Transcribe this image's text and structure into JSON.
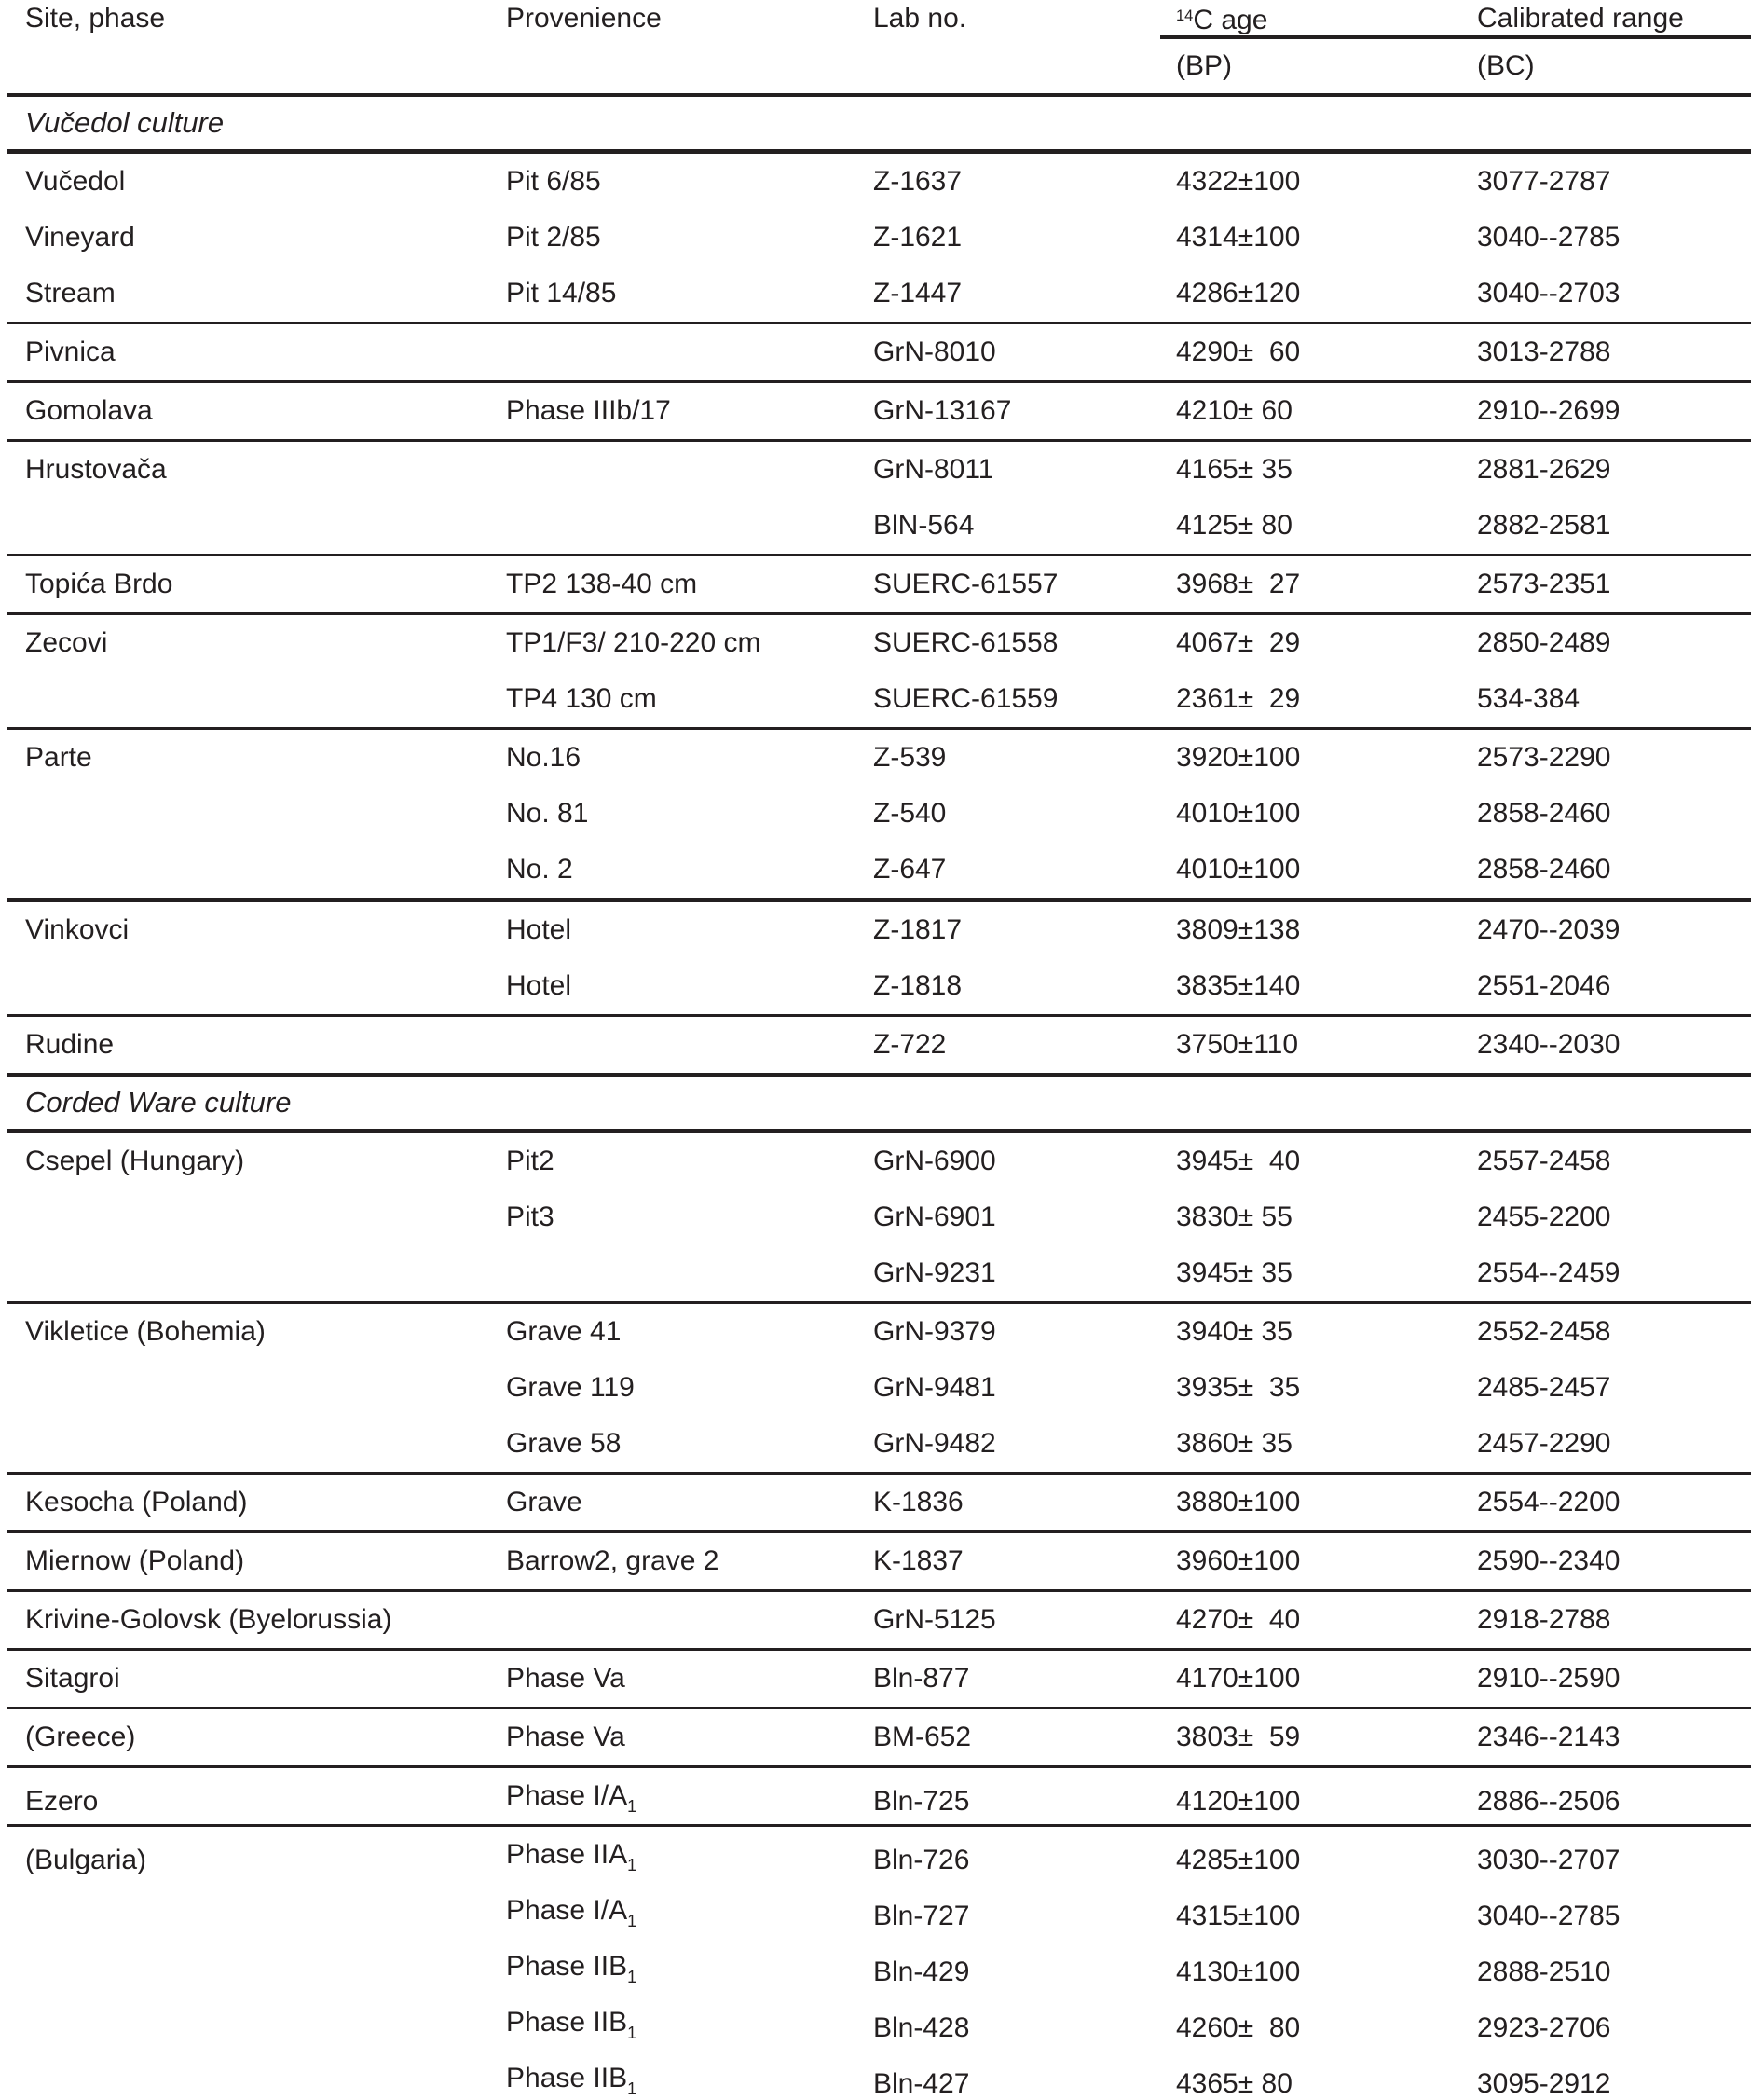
{
  "colors": {
    "text": "#231f20",
    "background": "#ffffff",
    "rule": "#231f20"
  },
  "header": {
    "site": "Site, phase",
    "provenience": "Provenience",
    "lab": "Lab no.",
    "c14_sup": "14",
    "c14_main": "C age",
    "bp": "(BP)",
    "calibrated": "Calibrated range",
    "bc": "(BC)"
  },
  "sections": [
    {
      "title": "Vučedol culture",
      "rule_after_title": "thick",
      "groups": [
        {
          "rule_after": "thin",
          "rows": [
            {
              "site": "Vučedol",
              "prov": "Pit 6/85",
              "lab": "Z-1637",
              "age": "4322±100",
              "cal": "3077-2787"
            },
            {
              "site": "Vineyard",
              "prov": "Pit 2/85",
              "lab": "Z-1621",
              "age": "4314±100",
              "cal": "3040--2785"
            },
            {
              "site": "Stream",
              "prov": "Pit 14/85",
              "lab": "Z-1447",
              "age": "4286±120",
              "cal": "3040--2703"
            }
          ]
        },
        {
          "rule_after": "thin",
          "rows": [
            {
              "site": "Pivnica",
              "prov": "",
              "lab": "GrN-8010",
              "age": "4290±  60",
              "cal": "3013-2788"
            }
          ]
        },
        {
          "rule_after": "thin",
          "rows": [
            {
              "site": "Gomolava",
              "prov": "Phase IIIb/17",
              "lab": "GrN-13167",
              "age": "4210± 60",
              "cal": "2910--2699"
            }
          ]
        },
        {
          "rule_after": "thin",
          "rows": [
            {
              "site": "Hrustovača",
              "prov": "",
              "lab": "GrN-8011",
              "age": "4165± 35",
              "cal": "2881-2629"
            },
            {
              "site": "",
              "prov": "",
              "lab": "BlN-564",
              "age": "4125± 80",
              "cal": "2882-2581"
            }
          ]
        },
        {
          "rule_after": "thin",
          "rows": [
            {
              "site": "Topića Brdo",
              "prov": "TP2 138-40 cm",
              "lab": "SUERC-61557",
              "age": "3968±  27",
              "cal": "2573-2351"
            }
          ]
        },
        {
          "rule_after": "thin",
          "rows": [
            {
              "site": "Zecovi",
              "prov": "TP1/F3/ 210-220 cm",
              "lab": "SUERC-61558",
              "age": "4067±  29",
              "cal": "2850-2489"
            },
            {
              "site": "",
              "prov": "TP4 130 cm",
              "lab": "SUERC-61559",
              "age": "2361±  29",
              "cal": "534-384"
            }
          ]
        },
        {
          "rule_after": "thick",
          "rows": [
            {
              "site": "Parte",
              "prov": "No.16",
              "lab": "Z-539",
              "age": "3920±100",
              "cal": "2573-2290"
            },
            {
              "site": "",
              "prov": "No. 81",
              "lab": "Z-540",
              "age": "4010±100",
              "cal": "2858-2460"
            },
            {
              "site": "",
              "prov": "No. 2",
              "lab": "Z-647",
              "age": "4010±100",
              "cal": "2858-2460"
            }
          ]
        },
        {
          "rule_after": "thin",
          "rows": [
            {
              "site": "Vinkovci",
              "prov": "Hotel",
              "lab": "Z-1817",
              "age": "3809±138",
              "cal": "2470--2039"
            },
            {
              "site": "",
              "prov": "Hotel",
              "lab": "Z-1818",
              "age": "3835±140",
              "cal": "2551-2046"
            }
          ]
        },
        {
          "rule_after": "medium",
          "rows": [
            {
              "site": "Rudine",
              "prov": "",
              "lab": "Z-722",
              "age": "3750±110",
              "cal": "2340--2030"
            }
          ]
        }
      ]
    },
    {
      "title": "Corded Ware culture",
      "rule_after_title": "thick",
      "groups": [
        {
          "rule_after": "thin",
          "rows": [
            {
              "site": "Csepel (Hungary)",
              "prov": "Pit2",
              "lab": "GrN-6900",
              "age": "3945±  40",
              "cal": "2557-2458"
            },
            {
              "site": "",
              "prov": "Pit3",
              "lab": "GrN-6901",
              "age": "3830± 55",
              "cal": "2455-2200"
            },
            {
              "site": "",
              "prov": "",
              "lab": "GrN-9231",
              "age": "3945± 35",
              "cal": "2554--2459"
            }
          ]
        },
        {
          "rule_after": "thin",
          "rows": [
            {
              "site": "Vikletice (Bohemia)",
              "prov": "Grave 41",
              "lab": "GrN-9379",
              "age": "3940± 35",
              "cal": "2552-2458"
            },
            {
              "site": "",
              "prov": "Grave 119",
              "lab": "GrN-9481",
              "age": "3935±  35",
              "cal": "2485-2457"
            },
            {
              "site": "",
              "prov": "Grave 58",
              "lab": "GrN-9482",
              "age": "3860± 35",
              "cal": "2457-2290"
            }
          ]
        },
        {
          "rule_after": "thin",
          "rows": [
            {
              "site": "Kesocha (Poland)",
              "prov": "Grave",
              "lab": "K-1836",
              "age": "3880±100",
              "cal": "2554--2200"
            }
          ]
        },
        {
          "rule_after": "thin",
          "rows": [
            {
              "site": "Miernow (Poland)",
              "prov": "Barrow2, grave 2",
              "lab": "K-1837",
              "age": "3960±100",
              "cal": "2590--2340"
            }
          ]
        },
        {
          "rule_after": "thin",
          "rows": [
            {
              "site": "Krivine-Golovsk (Byelorussia)",
              "prov": "",
              "lab": "GrN-5125",
              "age": "4270±  40",
              "cal": "2918-2788"
            }
          ]
        },
        {
          "rule_after": "thin",
          "rows": [
            {
              "site": "Sitagroi",
              "prov": "Phase Va",
              "lab": "Bln-877",
              "age": "4170±100",
              "cal": "2910--2590"
            }
          ]
        },
        {
          "rule_after": "thin",
          "rows": [
            {
              "site": "(Greece)",
              "prov": "Phase Va",
              "lab": "BM-652",
              "age": "3803±  59",
              "cal": "2346--2143"
            }
          ]
        },
        {
          "rule_after": "thin",
          "rows": [
            {
              "site": "Ezero",
              "prov": "Phase I/A",
              "prov_sub": "1",
              "lab": "Bln-725",
              "age": "4120±100",
              "cal": "2886--2506"
            }
          ]
        },
        {
          "rule_after": "none",
          "rows": [
            {
              "site": "(Bulgaria)",
              "prov": "Phase IIA",
              "prov_sub": "1",
              "lab": "Bln-726",
              "age": "4285±100",
              "cal": "3030--2707"
            },
            {
              "site": "",
              "prov": "Phase I/A",
              "prov_sub": "1",
              "lab": "Bln-727",
              "age": "4315±100",
              "cal": "3040--2785"
            },
            {
              "site": "",
              "prov": "Phase IIB",
              "prov_sub": "1",
              "lab": "Bln-429",
              "age": "4130±100",
              "cal": "2888-2510"
            },
            {
              "site": "",
              "prov": "Phase IIB",
              "prov_sub": "1",
              "lab": "Bln-428",
              "age": "4260±  80",
              "cal": "2923-2706"
            },
            {
              "site": "",
              "prov": "Phase IIB",
              "prov_sub": "1",
              "lab": "Bln-427",
              "age": "4365± 80",
              "cal": "3095-2912"
            }
          ]
        }
      ]
    }
  ]
}
